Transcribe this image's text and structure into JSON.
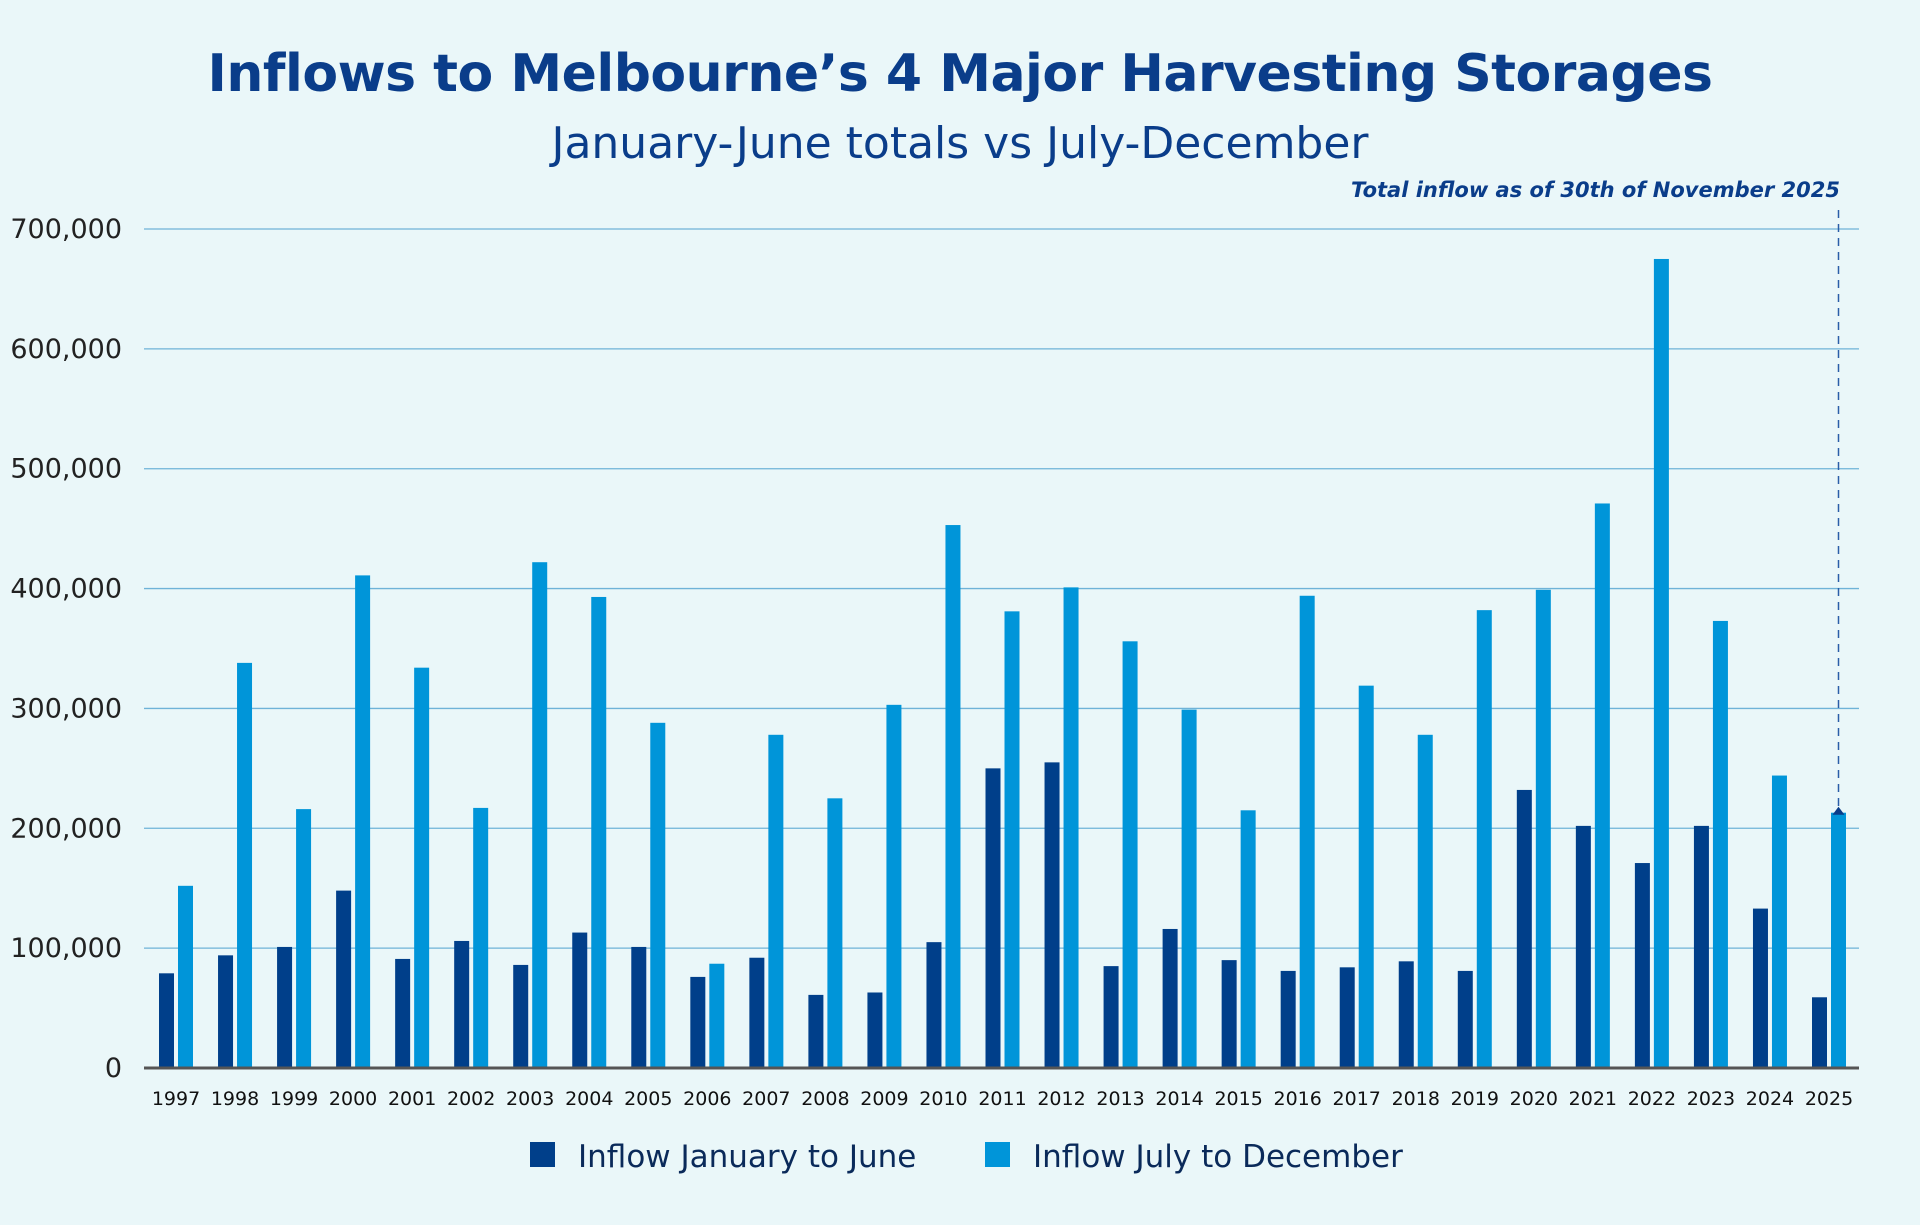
{
  "chart_data": {
    "type": "bar",
    "title": "Inflows to Melbourne’s 4 Major Harvesting Storages",
    "subtitle": "January-June totals vs July-December",
    "annotation": "Total inflow as of 30th of November 2025",
    "xlabel": "",
    "ylabel": "",
    "ylim": [
      0,
      700000
    ],
    "yticks": [
      0,
      100000,
      200000,
      300000,
      400000,
      500000,
      600000,
      700000
    ],
    "ytick_labels": [
      "0",
      "100,000",
      "200,000",
      "300,000",
      "400,000",
      "500,000",
      "600,000",
      "700,000"
    ],
    "grid": true,
    "legend_placement": "bottom",
    "categories": [
      "1997",
      "1998",
      "1999",
      "2000",
      "2001",
      "2002",
      "2003",
      "2004",
      "2005",
      "2006",
      "2007",
      "2008",
      "2009",
      "2010",
      "2011",
      "2012",
      "2013",
      "2014",
      "2015",
      "2016",
      "2017",
      "2018",
      "2019",
      "2020",
      "2021",
      "2022",
      "2023",
      "2024",
      "2025"
    ],
    "series": [
      {
        "name": "Inflow January to June",
        "color": "#003f8a",
        "values": [
          79000,
          94000,
          101000,
          148000,
          91000,
          106000,
          86000,
          113000,
          101000,
          76000,
          92000,
          61000,
          63000,
          105000,
          250000,
          255000,
          85000,
          116000,
          90000,
          81000,
          84000,
          89000,
          81000,
          232000,
          202000,
          171000,
          202000,
          133000,
          59000
        ]
      },
      {
        "name": "Inflow July to December",
        "color": "#0095d9",
        "values": [
          152000,
          338000,
          216000,
          411000,
          334000,
          217000,
          422000,
          393000,
          288000,
          87000,
          278000,
          225000,
          303000,
          453000,
          381000,
          401000,
          356000,
          299000,
          215000,
          394000,
          319000,
          278000,
          382000,
          399000,
          471000,
          675000,
          373000,
          244000,
          213000
        ]
      }
    ]
  }
}
